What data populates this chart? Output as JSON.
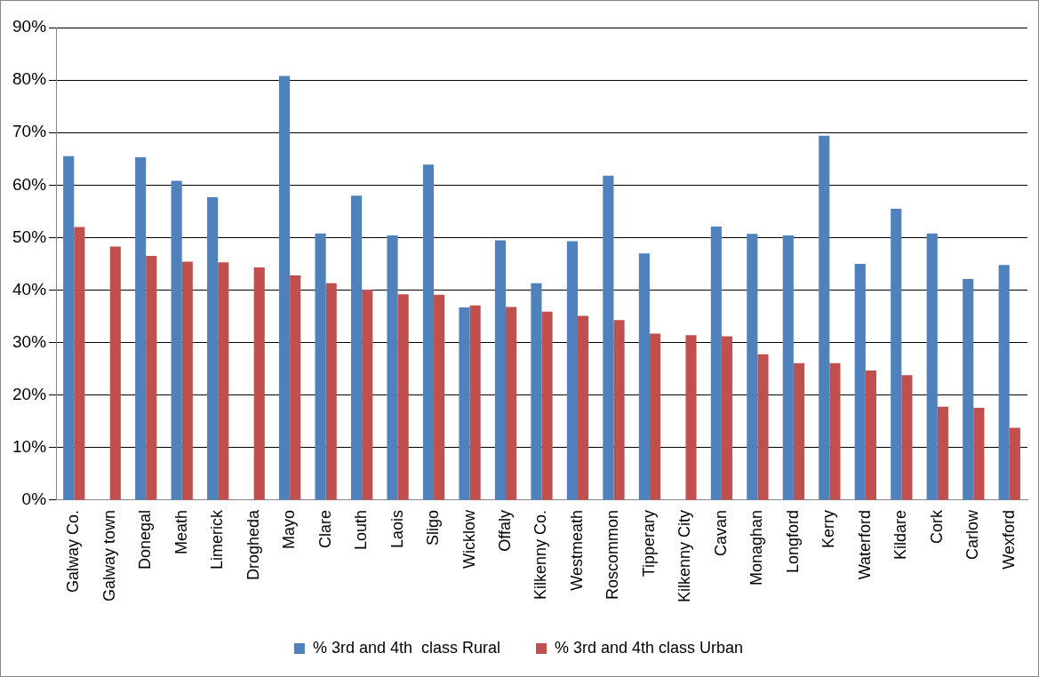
{
  "chart_data": {
    "type": "bar",
    "categories": [
      "Galway Co.",
      "Galway town",
      "Donegal",
      "Meath",
      "Limerick",
      "Drogheda",
      "Mayo",
      "Clare",
      "Louth",
      "Laois",
      "Sligo",
      "Wicklow",
      "Offaly",
      "Kilkenny Co.",
      "Westmeath",
      "Roscommon",
      "Tipperary",
      "Kilkenny City",
      "Cavan",
      "Monaghan",
      "Longford",
      "Kerry",
      "Waterford",
      "Kildare",
      "Cork",
      "Carlow",
      "Wexford"
    ],
    "series": [
      {
        "name": "% 3rd and 4th  class Rural",
        "color": "#4f81bd",
        "values": [
          65.5,
          null,
          65.3,
          60.8,
          57.7,
          null,
          80.8,
          50.8,
          58,
          50.4,
          63.9,
          36.7,
          49.5,
          41.3,
          49.3,
          61.8,
          47,
          null,
          52.1,
          50.7,
          50.4,
          69.4,
          45,
          55.5,
          50.8,
          42.1,
          44.8
        ]
      },
      {
        "name": "% 3rd and 4th class Urban",
        "color": "#c0504d",
        "values": [
          52,
          48.3,
          46.5,
          45.4,
          45.3,
          44.3,
          42.8,
          41.3,
          40.1,
          39.2,
          39.1,
          37.1,
          36.8,
          35.9,
          35.1,
          34.3,
          31.7,
          31.4,
          31.2,
          27.8,
          26.1,
          26.1,
          24.7,
          23.8,
          17.8,
          17.6,
          13.8
        ]
      }
    ],
    "ylim": [
      0,
      90
    ],
    "yticks": [
      {
        "value": 0,
        "label": "0%"
      },
      {
        "value": 10,
        "label": "10%"
      },
      {
        "value": 20,
        "label": "20%"
      },
      {
        "value": 30,
        "label": "30%"
      },
      {
        "value": 40,
        "label": "40%"
      },
      {
        "value": 50,
        "label": "50%"
      },
      {
        "value": 60,
        "label": "60%"
      },
      {
        "value": 70,
        "label": "70%"
      },
      {
        "value": 80,
        "label": "80%"
      },
      {
        "value": 90,
        "label": "90%"
      }
    ],
    "grid": "y",
    "legend": "bottom"
  }
}
